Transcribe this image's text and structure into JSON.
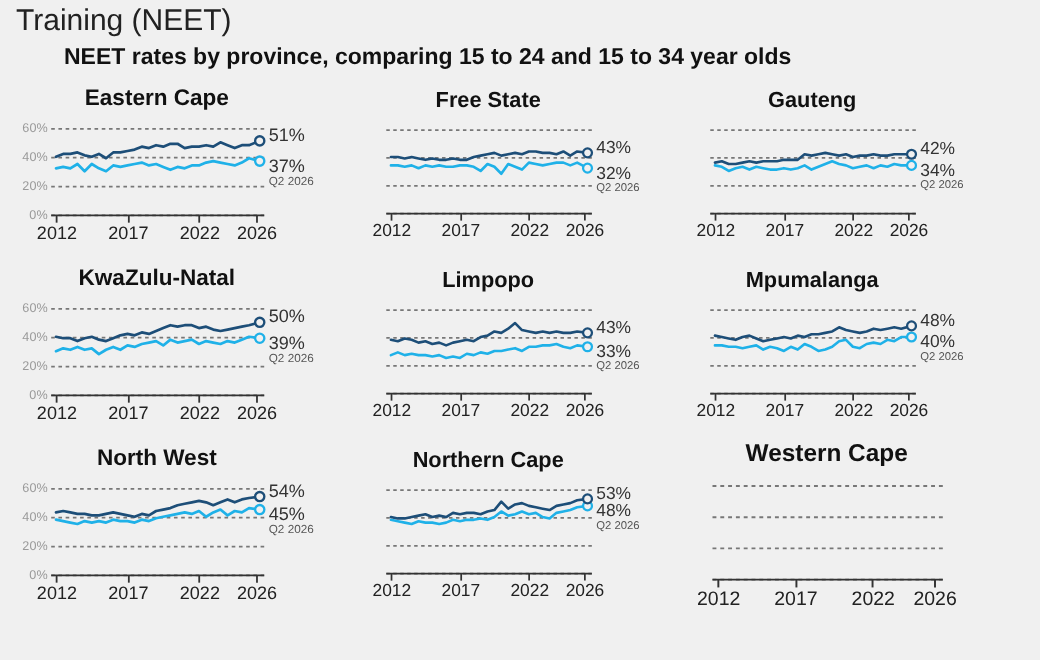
{
  "chart_data": [
    {
      "type": "other",
      "title": "Training (NEET)",
      "subtitle": "NEET rates by province, comparing 15 to 24 and 15 to 34 year olds"
    },
    {
      "type": "line",
      "title": "Eastern Cape",
      "xlim": [
        2011.6,
        2026.5
      ],
      "xticks": [
        2012,
        2017,
        2022,
        2026
      ],
      "ylim": [
        0,
        60
      ],
      "yticks": [
        {
          "value": 0,
          "label": "0%"
        },
        {
          "value": 20,
          "label": "20%"
        },
        {
          "value": 40,
          "label": "40%"
        },
        {
          "value": 60,
          "label": "60%"
        }
      ],
      "grid": "y",
      "annotations": [
        "Q2 2026"
      ],
      "x": [
        2012,
        2012.5,
        2013,
        2013.5,
        2014,
        2014.5,
        2015,
        2015.5,
        2016,
        2016.5,
        2017,
        2017.5,
        2018,
        2018.5,
        2019,
        2019.5,
        2020,
        2020.5,
        2021,
        2021.5,
        2022,
        2022.5,
        2023,
        2023.5,
        2024,
        2024.5,
        2025,
        2025.5,
        2026.25
      ],
      "series": [
        {
          "color": "#1fb1e8",
          "values": [
            32,
            33,
            32,
            35,
            30,
            35,
            32,
            30,
            34,
            33,
            34,
            35,
            36,
            34,
            35,
            33,
            31,
            33,
            32,
            34,
            34,
            36,
            37,
            36,
            35,
            34,
            36,
            39,
            37
          ],
          "value_labels": [
            null,
            null,
            null,
            null,
            null,
            null,
            null,
            null,
            null,
            null,
            null,
            null,
            null,
            null,
            null,
            null,
            null,
            null,
            null,
            null,
            null,
            null,
            null,
            null,
            null,
            null,
            null,
            null,
            "37%"
          ]
        },
        {
          "color": "#1d4e78",
          "values": [
            40,
            42,
            42,
            43,
            41,
            40,
            42,
            39,
            43,
            43,
            44,
            45,
            47,
            46,
            48,
            47,
            49,
            49,
            46,
            47,
            47,
            48,
            47,
            50,
            48,
            46,
            48,
            48,
            51
          ],
          "value_labels": [
            null,
            null,
            null,
            null,
            null,
            null,
            null,
            null,
            null,
            null,
            null,
            null,
            null,
            null,
            null,
            null,
            null,
            null,
            null,
            null,
            null,
            null,
            null,
            null,
            null,
            null,
            null,
            null,
            "51%"
          ]
        }
      ]
    },
    {
      "type": "line",
      "title": "Free State",
      "tick_labels": "x",
      "xlim": [
        2011.6,
        2026.5
      ],
      "xticks": [
        2012,
        2017,
        2022,
        2026
      ],
      "ylim": [
        0,
        60
      ],
      "yticks": [
        {
          "value": 0,
          "label": null
        },
        {
          "value": 20,
          "label": null
        },
        {
          "value": 40,
          "label": null
        },
        {
          "value": 60,
          "label": null
        }
      ],
      "grid": "y",
      "annotations": [
        "Q2 2026"
      ],
      "x": [
        2012,
        2012.5,
        2013,
        2013.5,
        2014,
        2014.5,
        2015,
        2015.5,
        2016,
        2016.5,
        2017,
        2017.5,
        2018,
        2018.5,
        2019,
        2019.5,
        2020,
        2020.5,
        2021,
        2021.5,
        2022,
        2022.5,
        2023,
        2023.5,
        2024,
        2024.5,
        2025,
        2025.5,
        2026.25
      ],
      "series": [
        {
          "color": "#1fb1e8",
          "values": [
            34,
            34,
            33,
            34,
            32,
            34,
            33,
            34,
            33,
            33,
            34,
            34,
            33,
            30,
            35,
            33,
            28,
            35,
            33,
            31,
            36,
            35,
            34,
            35,
            36,
            36,
            34,
            36,
            32
          ],
          "value_labels": [
            null,
            null,
            null,
            null,
            null,
            null,
            null,
            null,
            null,
            null,
            null,
            null,
            null,
            null,
            null,
            null,
            null,
            null,
            null,
            null,
            null,
            null,
            null,
            null,
            null,
            null,
            null,
            null,
            "32%"
          ]
        },
        {
          "color": "#1d4e78",
          "values": [
            40,
            40,
            39,
            40,
            39,
            38,
            39,
            38,
            38,
            39,
            38,
            38,
            40,
            41,
            42,
            43,
            41,
            42,
            43,
            42,
            44,
            44,
            43,
            43,
            42,
            44,
            41,
            44,
            43
          ],
          "value_labels": [
            null,
            null,
            null,
            null,
            null,
            null,
            null,
            null,
            null,
            null,
            null,
            null,
            null,
            null,
            null,
            null,
            null,
            null,
            null,
            null,
            null,
            null,
            null,
            null,
            null,
            null,
            null,
            null,
            "43%"
          ]
        }
      ]
    },
    {
      "type": "line",
      "title": "Gauteng",
      "tick_labels": "x",
      "xlim": [
        2011.6,
        2026.5
      ],
      "xticks": [
        2012,
        2017,
        2022,
        2026
      ],
      "ylim": [
        0,
        60
      ],
      "yticks": [
        {
          "value": 0,
          "label": null
        },
        {
          "value": 20,
          "label": null
        },
        {
          "value": 40,
          "label": null
        },
        {
          "value": 60,
          "label": null
        }
      ],
      "grid": "y",
      "annotations": [
        "Q2 2026"
      ],
      "x": [
        2012,
        2012.5,
        2013,
        2013.5,
        2014,
        2014.5,
        2015,
        2015.5,
        2016,
        2016.5,
        2017,
        2017.5,
        2018,
        2018.5,
        2019,
        2019.5,
        2020,
        2020.5,
        2021,
        2021.5,
        2022,
        2022.5,
        2023,
        2023.5,
        2024,
        2024.5,
        2025,
        2025.5,
        2026.25
      ],
      "series": [
        {
          "color": "#1fb1e8",
          "values": [
            34,
            33,
            30,
            32,
            33,
            31,
            33,
            32,
            31,
            31,
            32,
            31,
            32,
            34,
            31,
            33,
            35,
            37,
            35,
            34,
            32,
            33,
            34,
            32,
            34,
            33,
            35,
            34,
            34
          ],
          "value_labels": [
            null,
            null,
            null,
            null,
            null,
            null,
            null,
            null,
            null,
            null,
            null,
            null,
            null,
            null,
            null,
            null,
            null,
            null,
            null,
            null,
            null,
            null,
            null,
            null,
            null,
            null,
            null,
            null,
            "34%"
          ]
        },
        {
          "color": "#1d4e78",
          "values": [
            36,
            37,
            35,
            35,
            36,
            37,
            36,
            37,
            37,
            37,
            38,
            38,
            38,
            42,
            41,
            42,
            43,
            42,
            41,
            42,
            40,
            41,
            41,
            42,
            41,
            41,
            42,
            42,
            42
          ],
          "value_labels": [
            null,
            null,
            null,
            null,
            null,
            null,
            null,
            null,
            null,
            null,
            null,
            null,
            null,
            null,
            null,
            null,
            null,
            null,
            null,
            null,
            null,
            null,
            null,
            null,
            null,
            null,
            null,
            null,
            "42%"
          ]
        }
      ]
    },
    {
      "type": "line",
      "title": "KwaZulu-Natal",
      "xlim": [
        2011.6,
        2026.5
      ],
      "xticks": [
        2012,
        2017,
        2022,
        2026
      ],
      "ylim": [
        0,
        60
      ],
      "yticks": [
        {
          "value": 0,
          "label": "0%"
        },
        {
          "value": 20,
          "label": "20%"
        },
        {
          "value": 40,
          "label": "40%"
        },
        {
          "value": 60,
          "label": "60%"
        }
      ],
      "grid": "y",
      "annotations": [
        "Q2 2026"
      ],
      "x": [
        2012,
        2012.5,
        2013,
        2013.5,
        2014,
        2014.5,
        2015,
        2015.5,
        2016,
        2016.5,
        2017,
        2017.5,
        2018,
        2018.5,
        2019,
        2019.5,
        2020,
        2020.5,
        2021,
        2021.5,
        2022,
        2022.5,
        2023,
        2023.5,
        2024,
        2024.5,
        2025,
        2025.5,
        2026.25
      ],
      "series": [
        {
          "color": "#1fb1e8",
          "values": [
            30,
            32,
            31,
            33,
            31,
            32,
            28,
            31,
            33,
            31,
            34,
            33,
            35,
            36,
            37,
            34,
            38,
            36,
            37,
            38,
            35,
            37,
            36,
            35,
            37,
            36,
            38,
            40,
            39
          ],
          "value_labels": [
            null,
            null,
            null,
            null,
            null,
            null,
            null,
            null,
            null,
            null,
            null,
            null,
            null,
            null,
            null,
            null,
            null,
            null,
            null,
            null,
            null,
            null,
            null,
            null,
            null,
            null,
            null,
            null,
            "39%"
          ]
        },
        {
          "color": "#1d4e78",
          "values": [
            40,
            39,
            39,
            37,
            39,
            40,
            38,
            37,
            39,
            41,
            42,
            41,
            43,
            42,
            44,
            46,
            48,
            47,
            48,
            48,
            46,
            47,
            45,
            44,
            45,
            46,
            47,
            48,
            50
          ],
          "value_labels": [
            null,
            null,
            null,
            null,
            null,
            null,
            null,
            null,
            null,
            null,
            null,
            null,
            null,
            null,
            null,
            null,
            null,
            null,
            null,
            null,
            null,
            null,
            null,
            null,
            null,
            null,
            null,
            null,
            "50%"
          ]
        }
      ]
    },
    {
      "type": "line",
      "title": "Limpopo",
      "tick_labels": "x",
      "xlim": [
        2011.6,
        2026.5
      ],
      "xticks": [
        2012,
        2017,
        2022,
        2026
      ],
      "ylim": [
        0,
        60
      ],
      "yticks": [
        {
          "value": 0,
          "label": null
        },
        {
          "value": 20,
          "label": null
        },
        {
          "value": 40,
          "label": null
        },
        {
          "value": 60,
          "label": null
        }
      ],
      "grid": "y",
      "annotations": [
        "Q2 2026"
      ],
      "x": [
        2012,
        2012.5,
        2013,
        2013.5,
        2014,
        2014.5,
        2015,
        2015.5,
        2016,
        2016.5,
        2017,
        2017.5,
        2018,
        2018.5,
        2019,
        2019.5,
        2020,
        2020.5,
        2021,
        2021.5,
        2022,
        2022.5,
        2023,
        2023.5,
        2024,
        2024.5,
        2025,
        2025.5,
        2026.25
      ],
      "series": [
        {
          "color": "#1fb1e8",
          "values": [
            27,
            29,
            27,
            28,
            27,
            27,
            26,
            27,
            25,
            26,
            25,
            28,
            27,
            29,
            28,
            30,
            30,
            31,
            32,
            30,
            33,
            33,
            34,
            34,
            35,
            33,
            32,
            34,
            33
          ],
          "value_labels": [
            null,
            null,
            null,
            null,
            null,
            null,
            null,
            null,
            null,
            null,
            null,
            null,
            null,
            null,
            null,
            null,
            null,
            null,
            null,
            null,
            null,
            null,
            null,
            null,
            null,
            null,
            null,
            null,
            "33%"
          ]
        },
        {
          "color": "#1d4e78",
          "values": [
            38,
            37,
            39,
            38,
            36,
            37,
            35,
            36,
            34,
            36,
            37,
            38,
            37,
            40,
            41,
            44,
            43,
            46,
            50,
            45,
            44,
            43,
            44,
            43,
            44,
            43,
            43,
            44,
            43
          ],
          "value_labels": [
            null,
            null,
            null,
            null,
            null,
            null,
            null,
            null,
            null,
            null,
            null,
            null,
            null,
            null,
            null,
            null,
            null,
            null,
            null,
            null,
            null,
            null,
            null,
            null,
            null,
            null,
            null,
            null,
            "43%"
          ]
        }
      ]
    },
    {
      "type": "line",
      "title": "Mpumalanga",
      "tick_labels": "x",
      "xlim": [
        2011.6,
        2026.5
      ],
      "xticks": [
        2012,
        2017,
        2022,
        2026
      ],
      "ylim": [
        0,
        60
      ],
      "yticks": [
        {
          "value": 0,
          "label": null
        },
        {
          "value": 20,
          "label": null
        },
        {
          "value": 40,
          "label": null
        },
        {
          "value": 60,
          "label": null
        }
      ],
      "grid": "y",
      "annotations": [
        "Q2 2026"
      ],
      "x": [
        2012,
        2012.5,
        2013,
        2013.5,
        2014,
        2014.5,
        2015,
        2015.5,
        2016,
        2016.5,
        2017,
        2017.5,
        2018,
        2018.5,
        2019,
        2019.5,
        2020,
        2020.5,
        2021,
        2021.5,
        2022,
        2022.5,
        2023,
        2023.5,
        2024,
        2024.5,
        2025,
        2025.5,
        2026.25
      ],
      "series": [
        {
          "color": "#1fb1e8",
          "values": [
            34,
            34,
            33,
            33,
            32,
            33,
            34,
            31,
            33,
            32,
            30,
            33,
            31,
            35,
            33,
            30,
            31,
            33,
            37,
            38,
            33,
            32,
            35,
            36,
            35,
            38,
            37,
            40,
            40
          ],
          "value_labels": [
            null,
            null,
            null,
            null,
            null,
            null,
            null,
            null,
            null,
            null,
            null,
            null,
            null,
            null,
            null,
            null,
            null,
            null,
            null,
            null,
            null,
            null,
            null,
            null,
            null,
            null,
            null,
            null,
            "40%"
          ]
        },
        {
          "color": "#1d4e78",
          "values": [
            41,
            40,
            39,
            38,
            40,
            41,
            39,
            37,
            38,
            39,
            40,
            39,
            41,
            40,
            42,
            42,
            43,
            44,
            47,
            45,
            44,
            43,
            44,
            46,
            45,
            46,
            47,
            46,
            48
          ],
          "value_labels": [
            null,
            null,
            null,
            null,
            null,
            null,
            null,
            null,
            null,
            null,
            null,
            null,
            null,
            null,
            null,
            null,
            null,
            null,
            null,
            null,
            null,
            null,
            null,
            null,
            null,
            null,
            null,
            null,
            "48%"
          ]
        }
      ]
    },
    {
      "type": "line",
      "title": "North West",
      "xlim": [
        2011.6,
        2026.5
      ],
      "xticks": [
        2012,
        2017,
        2022,
        2026
      ],
      "ylim": [
        0,
        60
      ],
      "yticks": [
        {
          "value": 0,
          "label": "0%"
        },
        {
          "value": 20,
          "label": "20%"
        },
        {
          "value": 40,
          "label": "40%"
        },
        {
          "value": 60,
          "label": "60%"
        }
      ],
      "grid": "y",
      "annotations": [
        "Q2 2026"
      ],
      "x": [
        2012,
        2012.5,
        2013,
        2013.5,
        2014,
        2014.5,
        2015,
        2015.5,
        2016,
        2016.5,
        2017,
        2017.5,
        2018,
        2018.5,
        2019,
        2019.5,
        2020,
        2020.5,
        2021,
        2021.5,
        2022,
        2022.5,
        2023,
        2023.5,
        2024,
        2024.5,
        2025,
        2025.5,
        2026.25
      ],
      "series": [
        {
          "color": "#1fb1e8",
          "values": [
            38,
            37,
            36,
            35,
            37,
            36,
            37,
            36,
            38,
            37,
            37,
            36,
            38,
            37,
            39,
            40,
            41,
            42,
            43,
            42,
            44,
            40,
            43,
            45,
            41,
            44,
            43,
            46,
            45
          ],
          "value_labels": [
            null,
            null,
            null,
            null,
            null,
            null,
            null,
            null,
            null,
            null,
            null,
            null,
            null,
            null,
            null,
            null,
            null,
            null,
            null,
            null,
            null,
            null,
            null,
            null,
            null,
            null,
            null,
            null,
            "45%"
          ]
        },
        {
          "color": "#1d4e78",
          "values": [
            43,
            44,
            43,
            42,
            42,
            41,
            41,
            42,
            43,
            42,
            41,
            40,
            42,
            41,
            44,
            45,
            46,
            48,
            49,
            50,
            51,
            50,
            48,
            50,
            52,
            50,
            52,
            53,
            54
          ],
          "value_labels": [
            null,
            null,
            null,
            null,
            null,
            null,
            null,
            null,
            null,
            null,
            null,
            null,
            null,
            null,
            null,
            null,
            null,
            null,
            null,
            null,
            null,
            null,
            null,
            null,
            null,
            null,
            null,
            null,
            "54%"
          ]
        }
      ]
    },
    {
      "type": "line",
      "title": "Northern Cape",
      "tick_labels": "x",
      "xlim": [
        2011.6,
        2026.5
      ],
      "xticks": [
        2012,
        2017,
        2022,
        2026
      ],
      "ylim": [
        0,
        60
      ],
      "yticks": [
        {
          "value": 0,
          "label": null
        },
        {
          "value": 20,
          "label": null
        },
        {
          "value": 40,
          "label": null
        },
        {
          "value": 60,
          "label": null
        }
      ],
      "grid": "y",
      "annotations": [
        "Q2 2026"
      ],
      "x": [
        2012,
        2012.5,
        2013,
        2013.5,
        2014,
        2014.5,
        2015,
        2015.5,
        2016,
        2016.5,
        2017,
        2017.5,
        2018,
        2018.5,
        2019,
        2019.5,
        2020,
        2020.5,
        2021,
        2021.5,
        2022,
        2022.5,
        2023,
        2023.5,
        2024,
        2024.5,
        2025,
        2025.5,
        2026.25
      ],
      "series": [
        {
          "color": "#1fb1e8",
          "values": [
            38,
            37,
            36,
            35,
            37,
            36,
            36,
            35,
            36,
            38,
            37,
            38,
            38,
            39,
            38,
            40,
            44,
            41,
            42,
            44,
            42,
            43,
            40,
            39,
            43,
            44,
            45,
            47,
            48
          ],
          "value_labels": [
            null,
            null,
            null,
            null,
            null,
            null,
            null,
            null,
            null,
            null,
            null,
            null,
            null,
            null,
            null,
            null,
            null,
            null,
            null,
            null,
            null,
            null,
            null,
            null,
            null,
            null,
            null,
            null,
            "48%"
          ]
        },
        {
          "color": "#1d4e78",
          "values": [
            40,
            39,
            39,
            40,
            41,
            42,
            40,
            41,
            40,
            43,
            42,
            43,
            43,
            42,
            44,
            45,
            51,
            46,
            49,
            50,
            48,
            47,
            46,
            45,
            48,
            49,
            50,
            52,
            53
          ],
          "value_labels": [
            null,
            null,
            null,
            null,
            null,
            null,
            null,
            null,
            null,
            null,
            null,
            null,
            null,
            null,
            null,
            null,
            null,
            null,
            null,
            null,
            null,
            null,
            null,
            null,
            null,
            null,
            null,
            null,
            "53%"
          ]
        }
      ]
    },
    {
      "type": "line",
      "title": "Western Cape",
      "tick_labels": "x",
      "xlim": [
        2011.6,
        2026.5
      ],
      "xticks": [
        2012,
        2017,
        2022,
        2026
      ],
      "ylim": [
        0,
        60
      ],
      "yticks": [
        {
          "value": 0,
          "label": null
        },
        {
          "value": 20,
          "label": null
        },
        {
          "value": 40,
          "label": null
        },
        {
          "value": 60,
          "label": null
        }
      ],
      "grid": "y"
    }
  ]
}
